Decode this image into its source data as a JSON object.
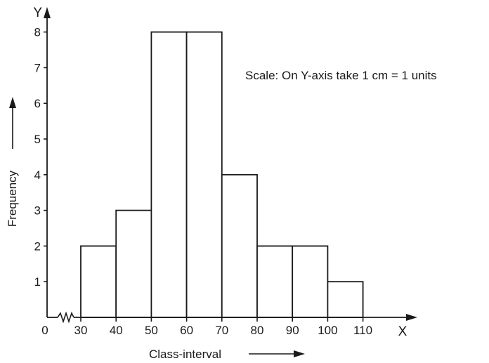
{
  "chart_data": {
    "type": "bar",
    "bins": [
      {
        "from": 30,
        "to": 40,
        "value": 2
      },
      {
        "from": 40,
        "to": 50,
        "value": 3
      },
      {
        "from": 50,
        "to": 60,
        "value": 8
      },
      {
        "from": 60,
        "to": 70,
        "value": 8
      },
      {
        "from": 70,
        "to": 80,
        "value": 4
      },
      {
        "from": 80,
        "to": 90,
        "value": 2
      },
      {
        "from": 90,
        "to": 100,
        "value": 2
      },
      {
        "from": 100,
        "to": 110,
        "value": 1
      }
    ],
    "x_ticks": [
      "0",
      "30",
      "40",
      "50",
      "60",
      "70",
      "80",
      "90",
      "100",
      "110"
    ],
    "y_ticks": [
      "1",
      "2",
      "3",
      "4",
      "5",
      "6",
      "7",
      "8"
    ],
    "x_axis_letter": "X",
    "y_axis_letter": "Y",
    "xlabel": "Class-interval",
    "ylabel": "Frequency",
    "annotation": "Scale: On Y-axis take 1 cm = 1 units",
    "xlim": [
      0,
      110
    ],
    "ylim": [
      0,
      8
    ],
    "x_axis_break": true,
    "grid": false,
    "bar_fill": "#ffffff",
    "line_color": "#1a1a1a"
  }
}
